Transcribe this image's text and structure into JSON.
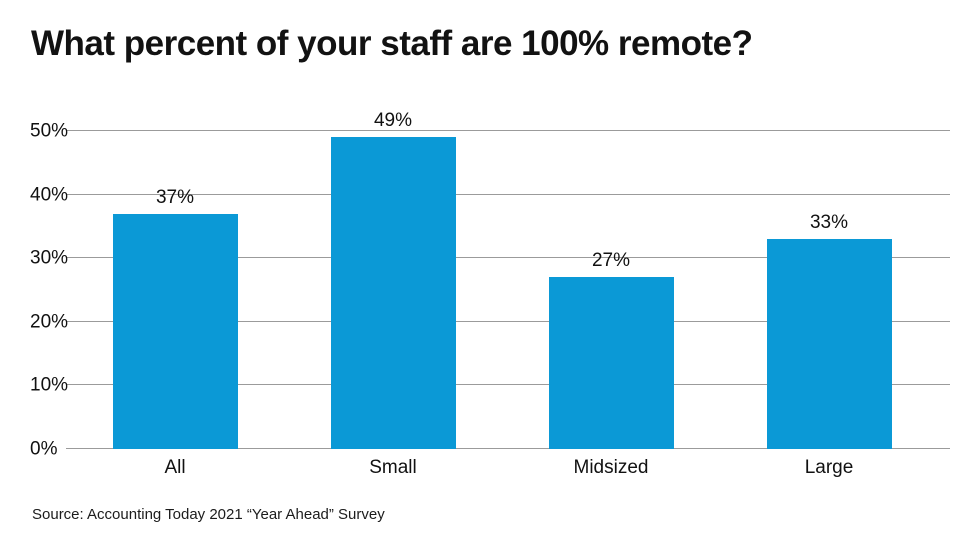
{
  "page": {
    "background": "#ffffff"
  },
  "chart_data": {
    "type": "bar",
    "title": "What percent of your staff are 100% remote?",
    "categories": [
      "All",
      "Small",
      "Midsized",
      "Large"
    ],
    "values": [
      37,
      49,
      27,
      33
    ],
    "value_labels": [
      "37%",
      "49%",
      "27%",
      "33%"
    ],
    "xlabel": "",
    "ylabel": "",
    "ylim": [
      0,
      50
    ],
    "yticks": [
      0,
      10,
      20,
      30,
      40,
      50
    ],
    "ytick_suffix": "%",
    "grid": true,
    "legend": "none",
    "bar_color": "#0b99d6",
    "gridline_color": "#9b9b9b",
    "text_color": "#111111",
    "source": "Source: Accounting Today 2021 “Year Ahead” Survey"
  }
}
